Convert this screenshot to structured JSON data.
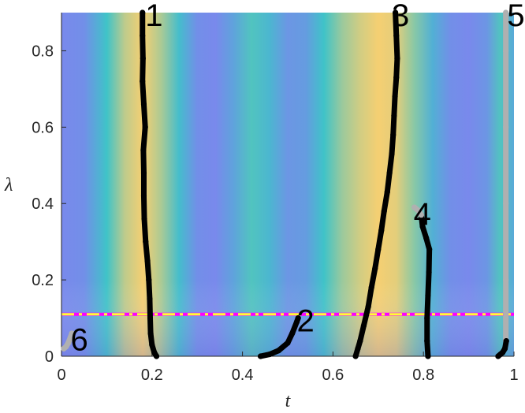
{
  "chart_data": {
    "type": "heatmap",
    "title": "",
    "xlabel": "t",
    "ylabel": "λ",
    "xlim": [
      0,
      1
    ],
    "ylim": [
      0,
      0.9
    ],
    "x_ticks": [
      0,
      0.2,
      0.4,
      0.6,
      0.8,
      1
    ],
    "x_tick_labels": [
      "0",
      "0.2",
      "0.4",
      "0.6",
      "0.8",
      "1"
    ],
    "y_ticks": [
      0,
      0.2,
      0.4,
      0.6,
      0.8
    ],
    "y_tick_labels": [
      "0",
      "0.2",
      "0.4",
      "0.6",
      "0.8"
    ],
    "grid": false,
    "colors": {
      "heat_low": "#7f82f0",
      "heat_mid": "#3fc3c8",
      "heat_high": "#f5cf72",
      "curve": "#000000",
      "curve_gray": "#b0b0b0",
      "threshold_magenta": "#ff00ff",
      "threshold_yellow": "#ffff33"
    },
    "threshold": {
      "y": 0.11,
      "style": "dash-dot"
    },
    "heat_bands": [
      {
        "t": 0.0,
        "level": 0.05
      },
      {
        "t": 0.05,
        "level": 0.1
      },
      {
        "t": 0.1,
        "level": 0.5
      },
      {
        "t": 0.14,
        "level": 0.85
      },
      {
        "t": 0.18,
        "level": 1.0
      },
      {
        "t": 0.22,
        "level": 0.8
      },
      {
        "t": 0.26,
        "level": 0.45
      },
      {
        "t": 0.3,
        "level": 0.1
      },
      {
        "t": 0.34,
        "level": 0.05
      },
      {
        "t": 0.38,
        "level": 0.25
      },
      {
        "t": 0.42,
        "level": 0.55
      },
      {
        "t": 0.46,
        "level": 0.4
      },
      {
        "t": 0.5,
        "level": 0.15
      },
      {
        "t": 0.54,
        "level": 0.2
      },
      {
        "t": 0.58,
        "level": 0.5
      },
      {
        "t": 0.62,
        "level": 0.75
      },
      {
        "t": 0.66,
        "level": 0.9
      },
      {
        "t": 0.7,
        "level": 1.0
      },
      {
        "t": 0.74,
        "level": 0.95
      },
      {
        "t": 0.78,
        "level": 0.7
      },
      {
        "t": 0.82,
        "level": 0.35
      },
      {
        "t": 0.86,
        "level": 0.1
      },
      {
        "t": 0.9,
        "level": 0.05
      },
      {
        "t": 0.94,
        "level": 0.15
      },
      {
        "t": 0.97,
        "level": 0.55
      },
      {
        "t": 1.0,
        "level": 0.3
      }
    ],
    "series": [
      {
        "label": "1",
        "color": "#000000",
        "label_at": [
          0.185,
          0.89
        ],
        "points": [
          [
            0.21,
            0
          ],
          [
            0.205,
            0.01
          ],
          [
            0.2,
            0.03
          ],
          [
            0.197,
            0.06
          ],
          [
            0.196,
            0.1
          ],
          [
            0.195,
            0.15
          ],
          [
            0.193,
            0.2
          ],
          [
            0.19,
            0.25
          ],
          [
            0.186,
            0.3
          ],
          [
            0.183,
            0.36
          ],
          [
            0.182,
            0.42
          ],
          [
            0.182,
            0.48
          ],
          [
            0.181,
            0.54
          ],
          [
            0.185,
            0.6
          ],
          [
            0.182,
            0.66
          ],
          [
            0.179,
            0.72
          ],
          [
            0.18,
            0.78
          ],
          [
            0.179,
            0.84
          ],
          [
            0.179,
            0.9
          ]
        ]
      },
      {
        "label": "2",
        "color": "#000000",
        "label_at": [
          0.52,
          0.09
        ],
        "points": [
          [
            0.44,
            0
          ],
          [
            0.46,
            0.005
          ],
          [
            0.48,
            0.015
          ],
          [
            0.5,
            0.035
          ],
          [
            0.51,
            0.06
          ],
          [
            0.52,
            0.09
          ],
          [
            0.523,
            0.1
          ]
        ]
      },
      {
        "label": "3",
        "color": "#000000",
        "label_at": [
          0.73,
          0.89
        ],
        "points": [
          [
            0.65,
            0
          ],
          [
            0.655,
            0.02
          ],
          [
            0.66,
            0.04
          ],
          [
            0.668,
            0.08
          ],
          [
            0.678,
            0.13
          ],
          [
            0.685,
            0.18
          ],
          [
            0.693,
            0.23
          ],
          [
            0.7,
            0.28
          ],
          [
            0.707,
            0.33
          ],
          [
            0.713,
            0.38
          ],
          [
            0.72,
            0.43
          ],
          [
            0.725,
            0.48
          ],
          [
            0.73,
            0.53
          ],
          [
            0.733,
            0.58
          ],
          [
            0.735,
            0.63
          ],
          [
            0.737,
            0.68
          ],
          [
            0.74,
            0.73
          ],
          [
            0.742,
            0.78
          ],
          [
            0.74,
            0.84
          ],
          [
            0.738,
            0.9
          ]
        ]
      },
      {
        "label": "4",
        "color": "#000000",
        "label_at": [
          0.778,
          0.37
        ],
        "points": [
          [
            0.81,
            0
          ],
          [
            0.808,
            0.04
          ],
          [
            0.808,
            0.1
          ],
          [
            0.81,
            0.16
          ],
          [
            0.812,
            0.22
          ],
          [
            0.813,
            0.28
          ],
          [
            0.806,
            0.31
          ],
          [
            0.798,
            0.34
          ],
          [
            0.795,
            0.37
          ]
        ]
      },
      {
        "label": "5",
        "color": "#b0b0b0",
        "label_at": [
          0.985,
          0.89
        ],
        "points": [
          [
            0.982,
            0.04
          ],
          [
            0.982,
            0.2
          ],
          [
            0.982,
            0.4
          ],
          [
            0.982,
            0.6
          ],
          [
            0.982,
            0.8
          ],
          [
            0.982,
            0.9
          ]
        ]
      },
      {
        "label": "",
        "color": "#000000",
        "label_at": null,
        "points": [
          [
            0.965,
            0
          ],
          [
            0.97,
            0.005
          ],
          [
            0.975,
            0.01
          ],
          [
            0.98,
            0.02
          ],
          [
            0.983,
            0.04
          ]
        ]
      },
      {
        "label": "",
        "color": "#b0b0b0",
        "label_at": null,
        "points": [
          [
            0.78,
            0.39
          ],
          [
            0.79,
            0.38
          ],
          [
            0.795,
            0.37
          ]
        ]
      },
      {
        "label": "6",
        "color": "#b0b0b0",
        "label_at": [
          0.02,
          0.04
        ],
        "points": [
          [
            0.005,
            0.02
          ],
          [
            0.01,
            0.025
          ],
          [
            0.015,
            0.035
          ],
          [
            0.02,
            0.05
          ],
          [
            0.023,
            0.06
          ]
        ]
      }
    ]
  }
}
